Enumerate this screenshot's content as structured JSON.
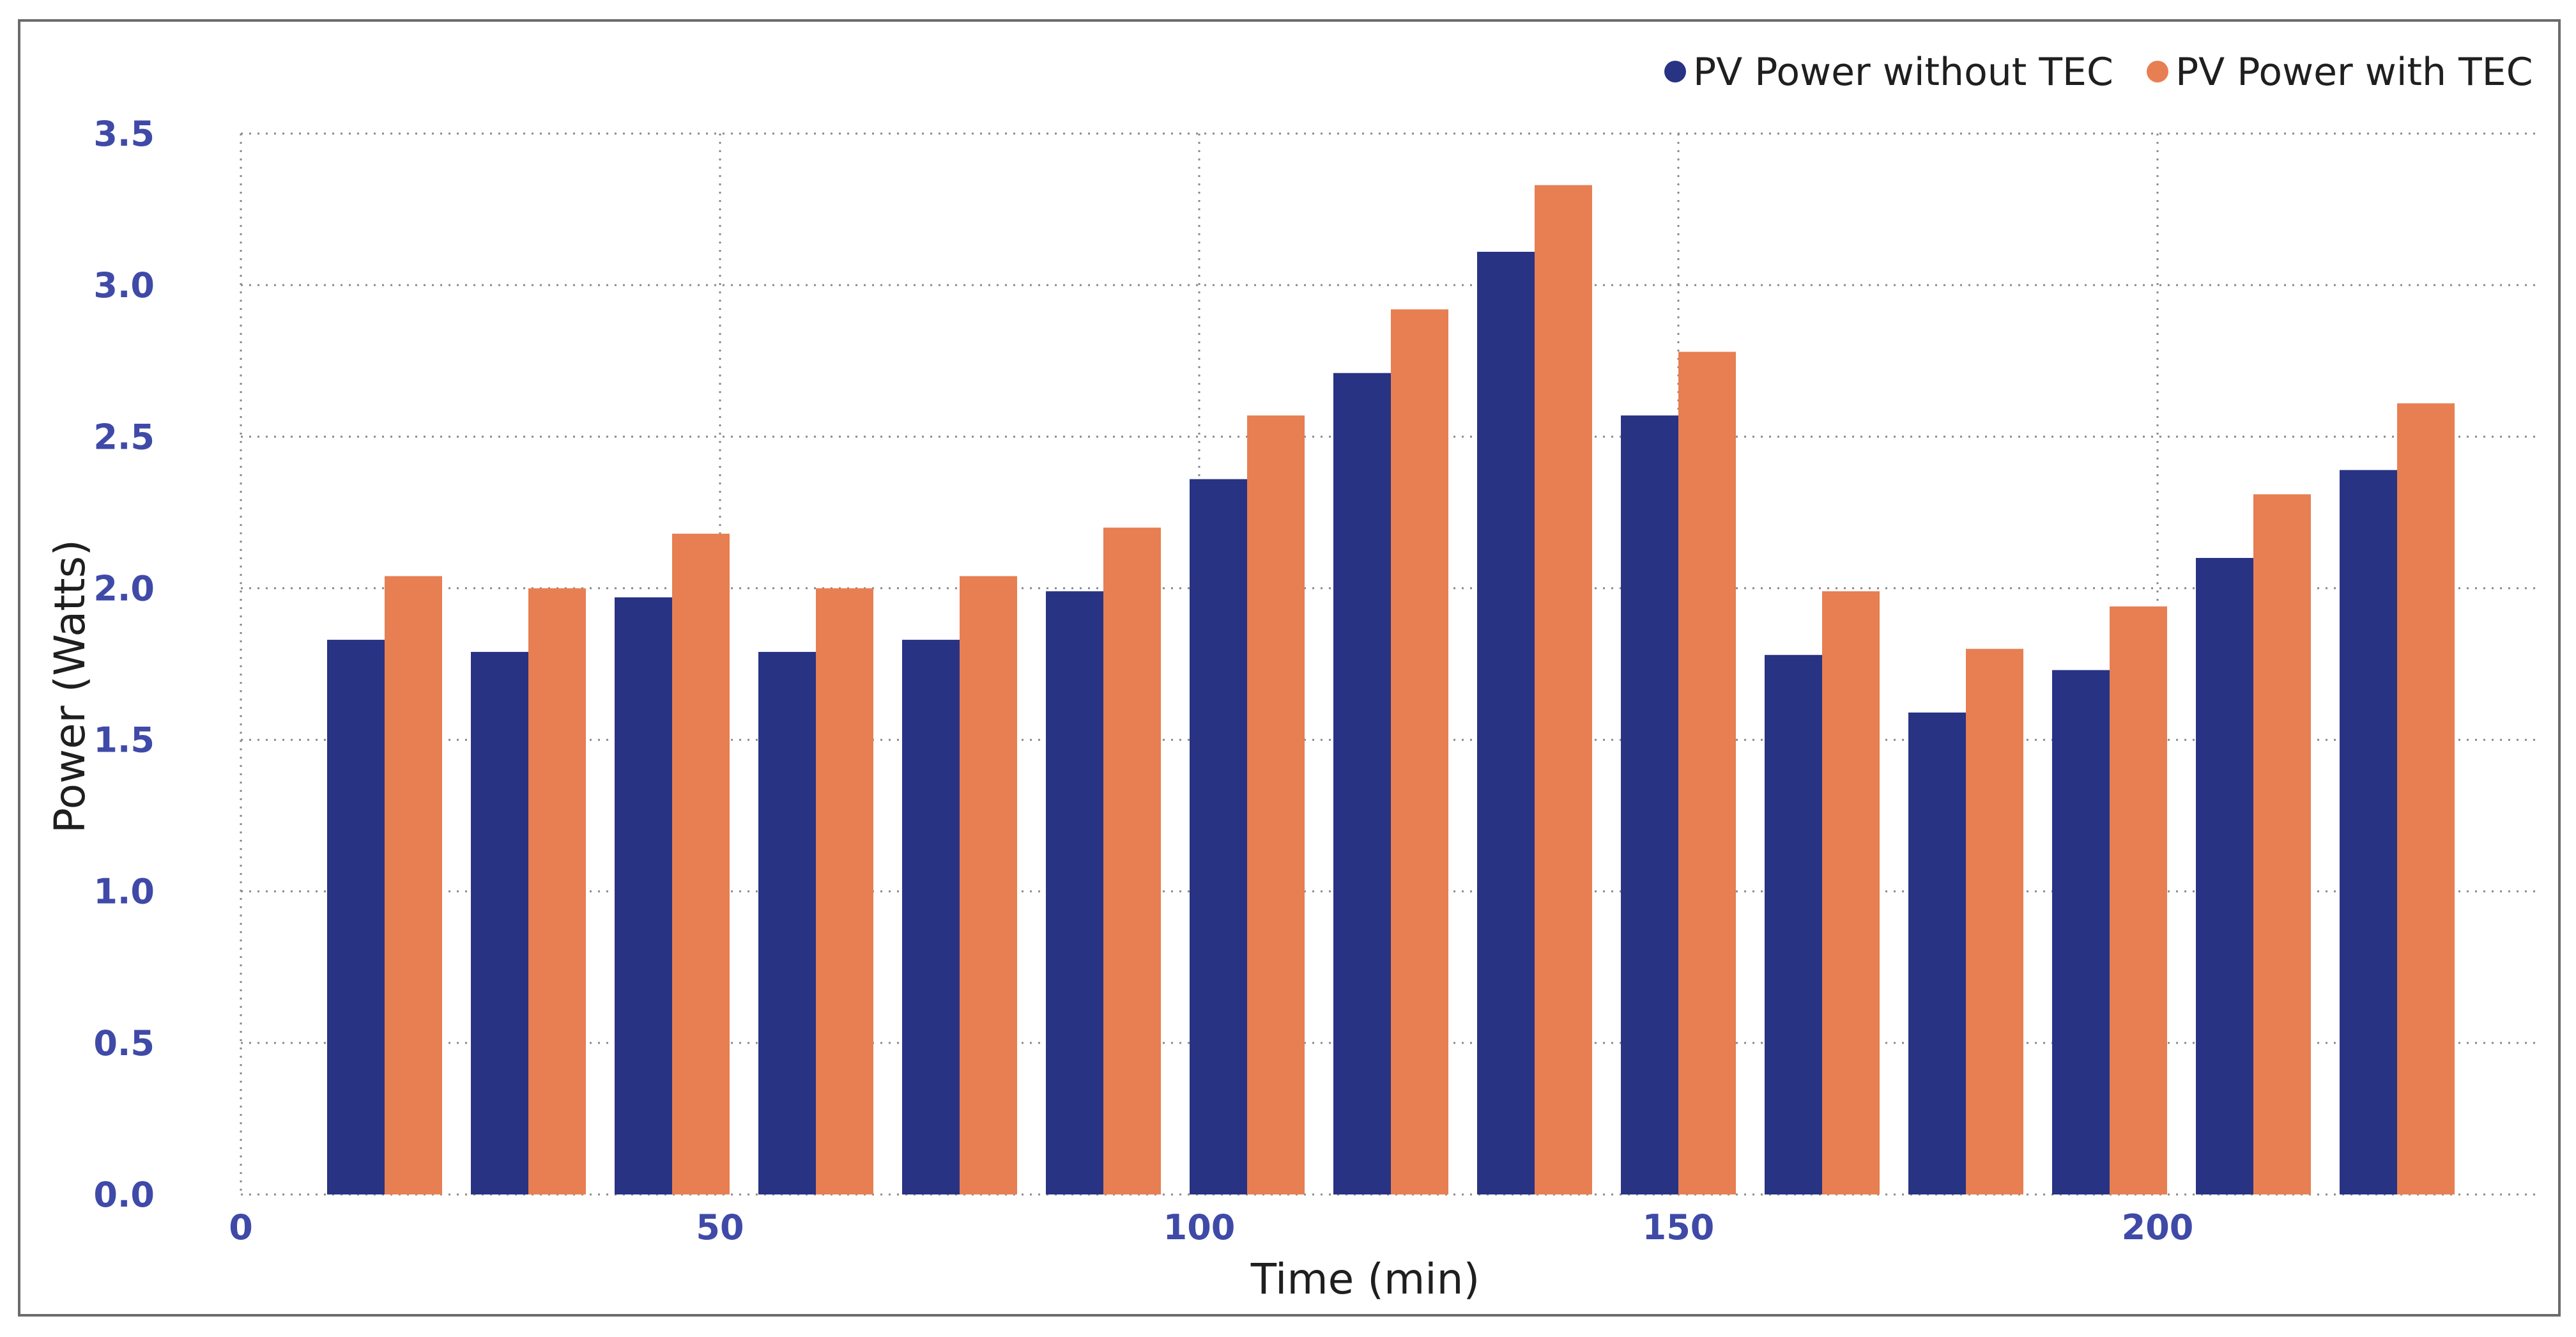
{
  "chart_data": {
    "type": "bar",
    "title": "",
    "xlabel": "Time (min)",
    "ylabel": "Power (Watts)",
    "x": [
      15,
      30,
      45,
      60,
      75,
      90,
      105,
      120,
      135,
      150,
      165,
      180,
      195,
      210,
      225
    ],
    "xlim": [
      0,
      240
    ],
    "ylim": [
      0,
      3.5
    ],
    "xticks": [
      0,
      50,
      100,
      150,
      200
    ],
    "xtick_labels": [
      "0",
      "50",
      "100",
      "150",
      "200"
    ],
    "yticks": [
      0,
      0.5,
      1.0,
      1.5,
      2.0,
      2.5,
      3.0,
      3.5
    ],
    "ytick_labels": [
      "0.0",
      "0.5",
      "1.0",
      "1.5",
      "2.0",
      "2.5",
      "3.0",
      "3.5"
    ],
    "grid": true,
    "legend_position": "top-right",
    "series": [
      {
        "name": "PV Power without TEC",
        "color": "#283384",
        "values": [
          1.83,
          1.79,
          1.97,
          1.79,
          1.83,
          1.99,
          2.36,
          2.71,
          3.11,
          2.57,
          1.78,
          1.59,
          1.73,
          2.1,
          2.39
        ]
      },
      {
        "name": "PV Power with TEC",
        "color": "#e77f52",
        "values": [
          2.04,
          2.0,
          2.18,
          2.0,
          2.04,
          2.2,
          2.57,
          2.92,
          3.33,
          2.78,
          1.99,
          1.8,
          1.94,
          2.31,
          2.61
        ]
      }
    ]
  }
}
